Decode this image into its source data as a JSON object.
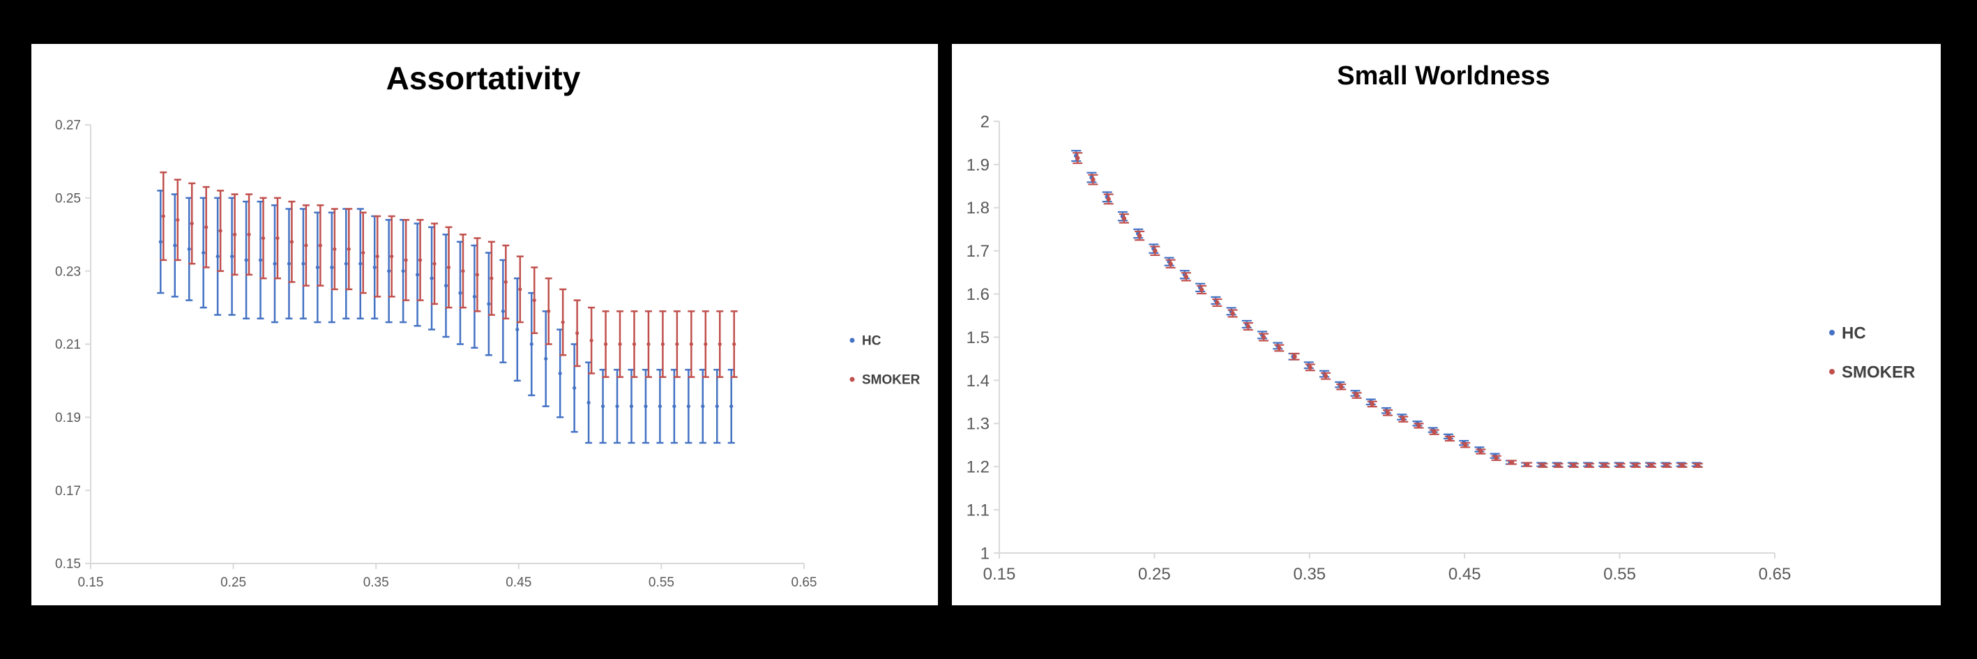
{
  "colors": {
    "hc": "#4472C4",
    "smoker": "#C0504D",
    "axis": "#D9D9D9",
    "background": "#000000",
    "panel": "#FFFFFF"
  },
  "chart_data": [
    {
      "type": "scatter",
      "title": "Assortativity",
      "xlabel": "",
      "ylabel": "",
      "xlim": [
        0.15,
        0.65
      ],
      "ylim": [
        0.15,
        0.27
      ],
      "x_ticks": [
        "0.15",
        "0.25",
        "0.35",
        "0.45",
        "0.55",
        "0.65"
      ],
      "y_ticks": [
        "0.15",
        "0.17",
        "0.19",
        "0.21",
        "0.23",
        "0.25",
        "0.27"
      ],
      "grid": false,
      "legend_position": "right",
      "x": [
        0.2,
        0.21,
        0.22,
        0.23,
        0.24,
        0.25,
        0.26,
        0.27,
        0.28,
        0.29,
        0.3,
        0.31,
        0.32,
        0.33,
        0.34,
        0.35,
        0.36,
        0.37,
        0.38,
        0.39,
        0.4,
        0.41,
        0.42,
        0.43,
        0.44,
        0.45,
        0.46,
        0.47,
        0.48,
        0.49,
        0.5,
        0.51,
        0.52,
        0.53,
        0.54,
        0.55,
        0.56,
        0.57,
        0.58,
        0.59,
        0.6
      ],
      "series": [
        {
          "name": "HC",
          "values": [
            0.238,
            0.237,
            0.236,
            0.235,
            0.234,
            0.234,
            0.233,
            0.233,
            0.232,
            0.232,
            0.232,
            0.231,
            0.231,
            0.232,
            0.232,
            0.231,
            0.23,
            0.23,
            0.229,
            0.228,
            0.226,
            0.224,
            0.223,
            0.221,
            0.219,
            0.214,
            0.21,
            0.206,
            0.202,
            0.198,
            0.194,
            0.193,
            0.193,
            0.193,
            0.193,
            0.193,
            0.193,
            0.193,
            0.193,
            0.193,
            0.193
          ],
          "error": [
            0.014,
            0.014,
            0.014,
            0.015,
            0.016,
            0.016,
            0.016,
            0.016,
            0.016,
            0.015,
            0.015,
            0.015,
            0.015,
            0.015,
            0.015,
            0.014,
            0.014,
            0.014,
            0.014,
            0.014,
            0.014,
            0.014,
            0.014,
            0.014,
            0.014,
            0.014,
            0.014,
            0.013,
            0.012,
            0.012,
            0.011,
            0.01,
            0.01,
            0.01,
            0.01,
            0.01,
            0.01,
            0.01,
            0.01,
            0.01,
            0.01
          ]
        },
        {
          "name": "SMOKER",
          "values": [
            0.245,
            0.244,
            0.243,
            0.242,
            0.241,
            0.24,
            0.24,
            0.239,
            0.239,
            0.238,
            0.237,
            0.237,
            0.236,
            0.236,
            0.235,
            0.234,
            0.234,
            0.233,
            0.233,
            0.232,
            0.231,
            0.23,
            0.229,
            0.228,
            0.227,
            0.225,
            0.222,
            0.219,
            0.216,
            0.213,
            0.211,
            0.21,
            0.21,
            0.21,
            0.21,
            0.21,
            0.21,
            0.21,
            0.21,
            0.21,
            0.21
          ],
          "error": [
            0.012,
            0.011,
            0.011,
            0.011,
            0.011,
            0.011,
            0.011,
            0.011,
            0.011,
            0.011,
            0.011,
            0.011,
            0.011,
            0.011,
            0.011,
            0.011,
            0.011,
            0.011,
            0.011,
            0.011,
            0.011,
            0.01,
            0.01,
            0.01,
            0.01,
            0.009,
            0.009,
            0.009,
            0.009,
            0.009,
            0.009,
            0.009,
            0.009,
            0.009,
            0.009,
            0.009,
            0.009,
            0.009,
            0.009,
            0.009,
            0.009
          ]
        }
      ]
    },
    {
      "type": "scatter",
      "title": "Small Worldness",
      "xlabel": "",
      "ylabel": "",
      "xlim": [
        0.15,
        0.65
      ],
      "ylim": [
        1,
        2
      ],
      "x_ticks": [
        "0.15",
        "0.25",
        "0.35",
        "0.45",
        "0.55",
        "0.65"
      ],
      "y_ticks": [
        "1",
        "1.1",
        "1.2",
        "1.3",
        "1.4",
        "1.5",
        "1.6",
        "1.7",
        "1.8",
        "1.9",
        "2"
      ],
      "grid": false,
      "legend_position": "right",
      "x": [
        0.2,
        0.21,
        0.22,
        0.23,
        0.24,
        0.25,
        0.26,
        0.27,
        0.28,
        0.29,
        0.3,
        0.31,
        0.32,
        0.33,
        0.34,
        0.35,
        0.36,
        0.37,
        0.38,
        0.39,
        0.4,
        0.41,
        0.42,
        0.43,
        0.44,
        0.45,
        0.46,
        0.47,
        0.48,
        0.49,
        0.5,
        0.51,
        0.52,
        0.53,
        0.54,
        0.55,
        0.56,
        0.57,
        0.58,
        0.59,
        0.6
      ],
      "series": [
        {
          "name": "HC",
          "values": [
            1.92,
            1.87,
            1.825,
            1.78,
            1.74,
            1.705,
            1.675,
            1.645,
            1.615,
            1.585,
            1.56,
            1.53,
            1.505,
            1.48,
            1.455,
            1.435,
            1.415,
            1.39,
            1.37,
            1.35,
            1.33,
            1.315,
            1.3,
            1.285,
            1.27,
            1.255,
            1.24,
            1.225,
            1.21,
            1.205,
            1.205,
            1.205,
            1.205,
            1.205,
            1.205,
            1.205,
            1.205,
            1.205,
            1.205,
            1.205,
            1.205
          ],
          "error": [
            0.012,
            0.011,
            0.011,
            0.01,
            0.01,
            0.01,
            0.009,
            0.009,
            0.009,
            0.008,
            0.008,
            0.008,
            0.008,
            0.007,
            0.007,
            0.007,
            0.007,
            0.006,
            0.006,
            0.006,
            0.006,
            0.006,
            0.005,
            0.005,
            0.005,
            0.005,
            0.005,
            0.005,
            0.004,
            0.004,
            0.004,
            0.004,
            0.004,
            0.004,
            0.004,
            0.004,
            0.004,
            0.004,
            0.004,
            0.004,
            0.004
          ]
        },
        {
          "name": "SMOKER",
          "values": [
            1.915,
            1.865,
            1.82,
            1.775,
            1.735,
            1.7,
            1.67,
            1.64,
            1.61,
            1.58,
            1.555,
            1.525,
            1.5,
            1.475,
            1.455,
            1.43,
            1.41,
            1.385,
            1.365,
            1.345,
            1.325,
            1.31,
            1.295,
            1.28,
            1.265,
            1.25,
            1.235,
            1.22,
            1.21,
            1.205,
            1.203,
            1.203,
            1.203,
            1.203,
            1.203,
            1.203,
            1.203,
            1.203,
            1.203,
            1.203,
            1.203
          ],
          "error": [
            0.012,
            0.011,
            0.011,
            0.01,
            0.01,
            0.01,
            0.009,
            0.009,
            0.009,
            0.008,
            0.008,
            0.008,
            0.008,
            0.007,
            0.007,
            0.007,
            0.007,
            0.006,
            0.006,
            0.006,
            0.006,
            0.006,
            0.005,
            0.005,
            0.005,
            0.005,
            0.005,
            0.005,
            0.004,
            0.004,
            0.004,
            0.004,
            0.004,
            0.004,
            0.004,
            0.004,
            0.004,
            0.004,
            0.004,
            0.004,
            0.004
          ]
        }
      ]
    }
  ]
}
